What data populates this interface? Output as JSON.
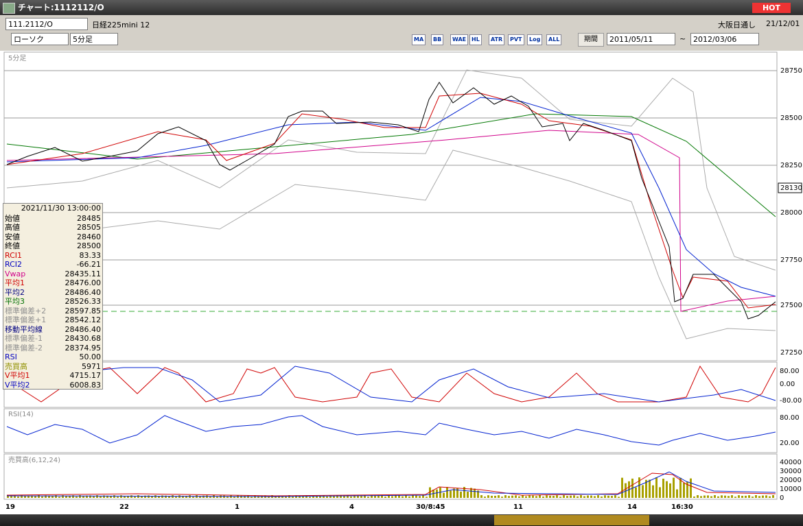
{
  "window": {
    "title": "チャート:1112112/O",
    "hot": "HOT"
  },
  "toolbar": {
    "symbol": "111.2112/O",
    "name": "日経225mini 12",
    "session": "大阪日通し",
    "date": "21/12/01",
    "chart_style": "ローソク",
    "interval": "5分足",
    "icons": [
      "MA",
      "BB",
      "WAE",
      "HL",
      "ATR",
      "PVT",
      "Log",
      "ALL"
    ],
    "period_button": "期間",
    "start_date": "2011/05/11",
    "separator": "~",
    "end_date": "2012/03/06"
  },
  "main_panel": {
    "label": "5分足",
    "price_ticks": [
      "28750",
      "28500",
      "28250",
      "28000",
      "27750",
      "27500",
      "27250"
    ],
    "current_price": "28130"
  },
  "info_box": {
    "timestamp": "2021/11/30 13:00:00",
    "rows": [
      {
        "label": "始値",
        "value": "28485",
        "color": "#000"
      },
      {
        "label": "高値",
        "value": "28505",
        "color": "#000"
      },
      {
        "label": "安値",
        "value": "28460",
        "color": "#000"
      },
      {
        "label": "終値",
        "value": "28500",
        "color": "#000"
      },
      {
        "label": "RCI1",
        "value": "83.33",
        "color": "#d00000"
      },
      {
        "label": "RCI2",
        "value": "-66.21",
        "color": "#0000c0"
      },
      {
        "label": "Vwap",
        "value": "28435.11",
        "color": "#d0008a"
      },
      {
        "label": "平均1",
        "value": "28476.00",
        "color": "#d00000"
      },
      {
        "label": "平均2",
        "value": "28486.40",
        "color": "#000080"
      },
      {
        "label": "平均3",
        "value": "28526.33",
        "color": "#007000"
      },
      {
        "label": "標準偏差+2",
        "value": "28597.85",
        "color": "#909090"
      },
      {
        "label": "標準偏差+1",
        "value": "28542.12",
        "color": "#909090"
      },
      {
        "label": "移動平均線",
        "value": "28486.40",
        "color": "#000080"
      },
      {
        "label": "標準偏差-1",
        "value": "28430.68",
        "color": "#909090"
      },
      {
        "label": "標準偏差-2",
        "value": "28374.95",
        "color": "#909090"
      },
      {
        "label": "RSI",
        "value": "50.00",
        "color": "#0000c0"
      },
      {
        "label": "売買高",
        "value": "5971",
        "color": "#909000"
      },
      {
        "label": "V平均1",
        "value": "4715.17",
        "color": "#d00000"
      },
      {
        "label": "V平均2",
        "value": "6008.83",
        "color": "#0000c0"
      }
    ]
  },
  "rci_panel": {
    "ticks": [
      "80.00",
      "0.00",
      "-80.00"
    ]
  },
  "rsi_panel": {
    "label": "RSI(14)",
    "ticks": [
      "80.00",
      "20.00"
    ]
  },
  "volume_panel": {
    "label": "売買高(6,12,24)",
    "ticks": [
      "40000",
      "30000",
      "20000",
      "10000",
      "0"
    ]
  },
  "time_axis": {
    "labels": [
      "19",
      "22",
      "1",
      "4",
      "30/8:45",
      "11",
      "14",
      "16:30"
    ]
  }
}
